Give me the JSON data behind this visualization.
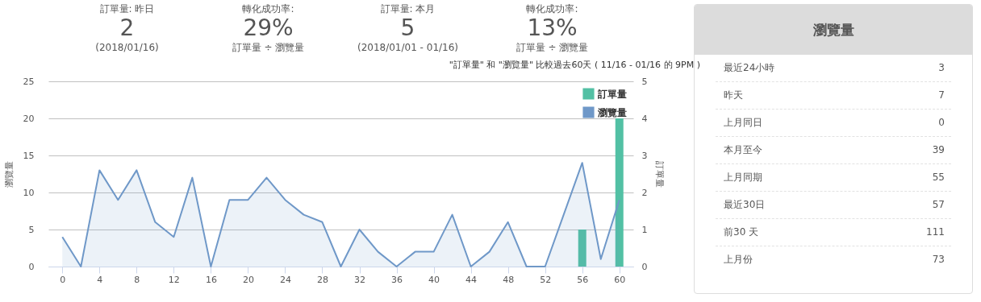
{
  "chart_data": [
    {
      "type": "other",
      "title": "訂單量: 昨日",
      "annotations": [
        "2",
        "(2018/01/16)"
      ]
    },
    {
      "type": "other",
      "title": "轉化成功率:",
      "annotations": [
        "29%",
        "訂單量 ÷ 瀏覽量"
      ]
    },
    {
      "type": "other",
      "title": "訂單量: 本月",
      "annotations": [
        "5",
        "(2018/01/01 - 01/16)"
      ]
    },
    {
      "type": "other",
      "title": "轉化成功率:",
      "annotations": [
        "13%",
        "訂單量 ÷ 瀏覽量"
      ]
    },
    {
      "type": "area",
      "subtitle": "\"訂單量\" 和 \"瀏覽量\" 比較過去60天 ( 11/16 - 01/16 的 9PM )",
      "ylabel": "瀏覽量",
      "y2label": "訂單量",
      "x": [
        0,
        2,
        4,
        6,
        8,
        10,
        12,
        14,
        16,
        18,
        20,
        22,
        24,
        26,
        28,
        30,
        32,
        34,
        36,
        38,
        40,
        42,
        44,
        46,
        48,
        50,
        52,
        54,
        56,
        58,
        60
      ],
      "xlim": [
        -1.5,
        61.5
      ],
      "xticks": [
        0,
        4,
        8,
        12,
        16,
        20,
        24,
        28,
        32,
        36,
        40,
        44,
        48,
        52,
        56,
        60
      ],
      "ylim": [
        0,
        25
      ],
      "yticks": [
        0,
        5,
        10,
        15,
        20,
        25
      ],
      "y2lim": [
        0,
        5
      ],
      "y2ticks": [
        0,
        1,
        2,
        3,
        4,
        5
      ],
      "grid": "y",
      "legend": "top right",
      "series": [
        {
          "name": "訂單量",
          "type": "bar",
          "axis": "y2",
          "color": "#52c0a4",
          "x": [
            56,
            60
          ],
          "values": [
            1,
            4
          ]
        },
        {
          "name": "瀏覽量",
          "type": "area",
          "color": "#6f98c8",
          "values": [
            4,
            0,
            13,
            9,
            13,
            6,
            4,
            12,
            0,
            9,
            9,
            12,
            9,
            7,
            6,
            0,
            5,
            2,
            0,
            2,
            2,
            7,
            0,
            2,
            6,
            0,
            0,
            7,
            14,
            1,
            9
          ]
        }
      ]
    },
    {
      "type": "other",
      "title": "瀏覽量",
      "categories": [
        "最近24小時",
        "昨天",
        "上月同日",
        "本月至今",
        "上月同期",
        "最近30日",
        "前30 天",
        "上月份"
      ],
      "values": [
        3,
        7,
        0,
        39,
        55,
        57,
        111,
        73
      ],
      "data_labels": true
    }
  ]
}
